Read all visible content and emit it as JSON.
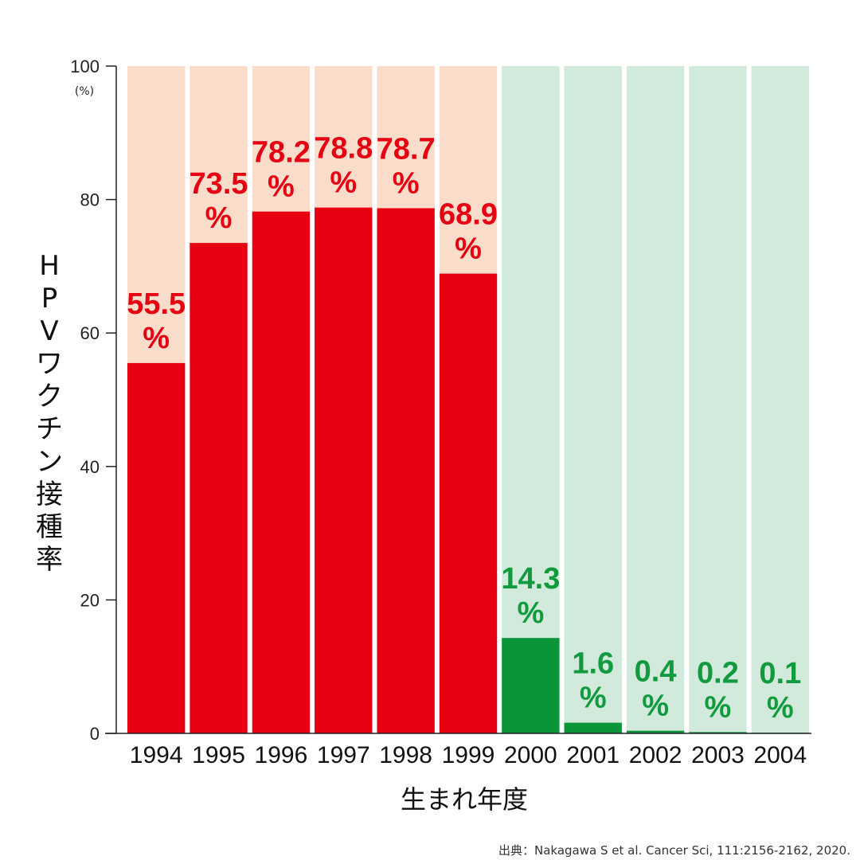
{
  "chart_data": {
    "type": "bar",
    "categories": [
      "1994",
      "1995",
      "1996",
      "1997",
      "1998",
      "1999",
      "2000",
      "2001",
      "2002",
      "2003",
      "2004"
    ],
    "values": [
      55.5,
      73.5,
      78.2,
      78.8,
      78.7,
      68.9,
      14.3,
      1.6,
      0.4,
      0.2,
      0.1
    ],
    "value_labels": [
      "55.5",
      "73.5",
      "78.2",
      "78.8",
      "78.7",
      "68.9",
      "14.3",
      "1.6",
      "0.4",
      "0.2",
      "0.1"
    ],
    "value_unit": "%",
    "ylim": [
      0,
      100
    ],
    "yticks": [
      0,
      20,
      40,
      60,
      80,
      100
    ],
    "ytick_labels": [
      "0",
      "20",
      "40",
      "60",
      "80",
      "100"
    ],
    "yunit": "(%)",
    "ylabel": "HPVワクチン接種率",
    "xlabel": "生まれ年度",
    "grid": false,
    "legend": "none"
  },
  "source": "出典：Nakagawa S et al. Cancer Sci, 111:2156-2162, 2020.",
  "colors": {
    "bar_high": "#e60012",
    "bar_low": "#0a9638",
    "background_high": "#fadccb",
    "background_low": "#d1eadb",
    "label_high": "#e60012",
    "label_low": "#129a3e",
    "axis": "#222222"
  },
  "group_split_index": 6
}
